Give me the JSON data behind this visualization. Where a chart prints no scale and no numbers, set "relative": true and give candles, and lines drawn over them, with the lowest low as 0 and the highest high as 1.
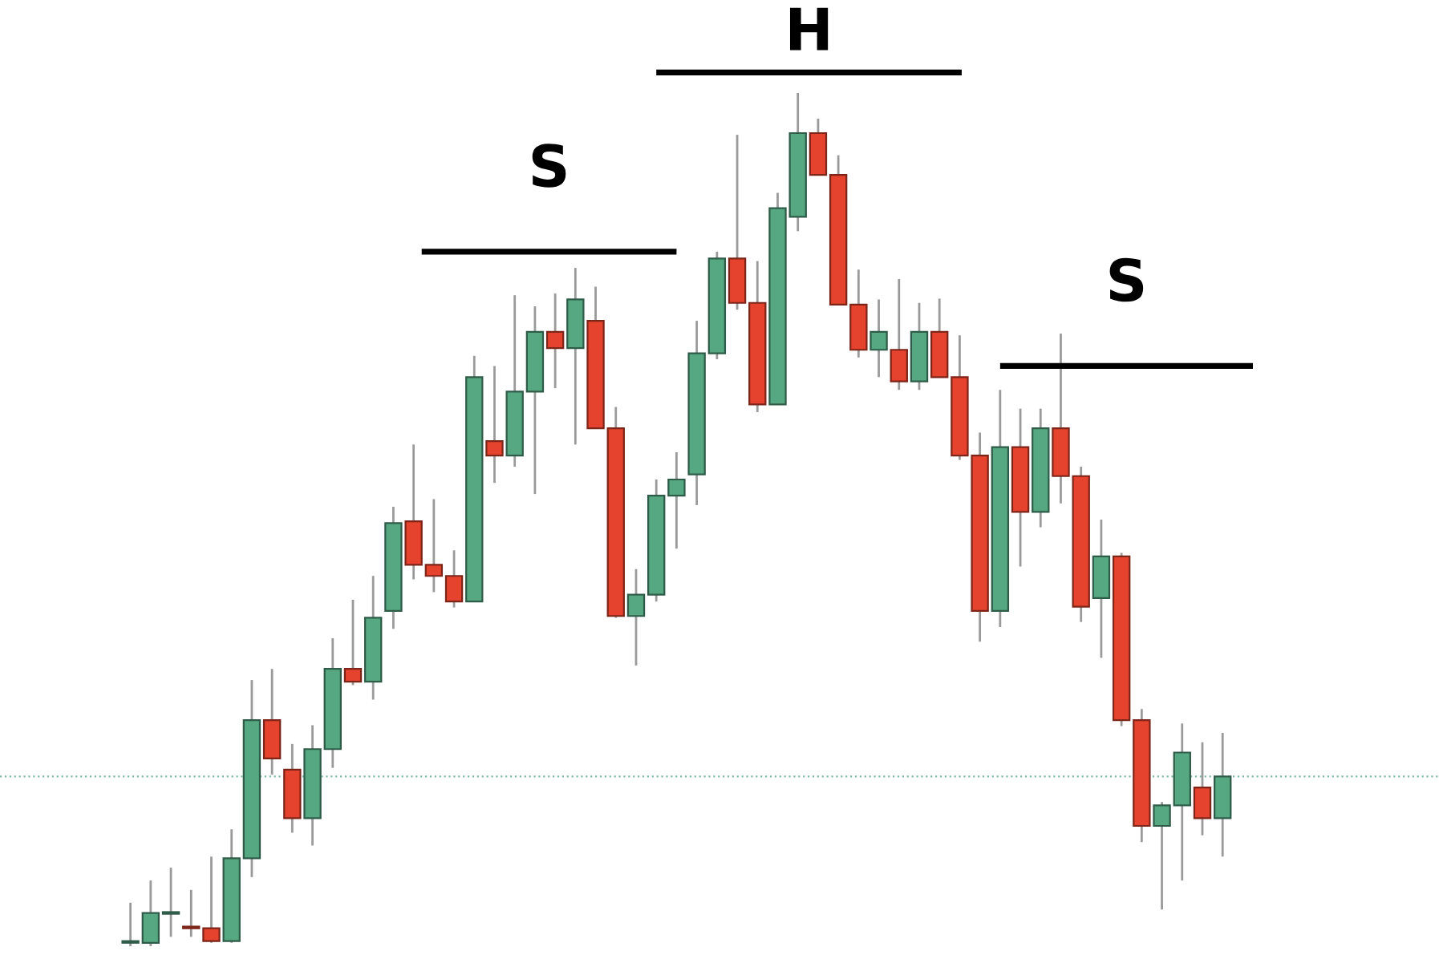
{
  "chart_data": {
    "type": "candlestick",
    "relative": true,
    "grid": false,
    "categories": [
      null,
      null,
      null,
      null,
      null,
      null,
      null,
      null,
      null,
      null,
      null,
      null,
      null,
      null,
      null,
      null,
      null,
      null,
      null,
      null,
      null,
      null,
      null,
      null,
      null,
      null,
      null,
      null,
      null,
      null,
      null,
      null,
      null,
      null,
      null,
      null,
      null,
      null,
      null,
      null,
      null,
      null,
      null,
      null,
      null,
      null,
      null,
      null,
      null,
      null,
      null,
      null,
      null,
      null,
      null
    ],
    "colors": [
      "#55a882",
      "#55a882",
      "#55a882",
      "#e5432d",
      "#e5432d",
      "#55a882",
      "#55a882",
      "#e5432d",
      "#e5432d",
      "#55a882",
      "#55a882",
      "#e5432d",
      "#55a882",
      "#55a882",
      "#e5432d",
      "#e5432d",
      "#e5432d",
      "#55a882",
      "#e5432d",
      "#55a882",
      "#55a882",
      "#e5432d",
      "#55a882",
      "#e5432d",
      "#e5432d",
      "#55a882",
      "#55a882",
      "#55a882",
      "#55a882",
      "#55a882",
      "#e5432d",
      "#e5432d",
      "#55a882",
      "#55a882",
      "#e5432d",
      "#e5432d",
      "#e5432d",
      "#55a882",
      "#e5432d",
      "#55a882",
      "#e5432d",
      "#e5432d",
      "#e5432d",
      "#55a882",
      "#e5432d",
      "#55a882",
      "#e5432d",
      "#e5432d",
      "#55a882",
      "#e5432d",
      "#e5432d",
      "#55a882",
      "#55a882",
      "#e5432d",
      "#55a882"
    ],
    "ohlc": [
      [
        0.004,
        0.051,
        0,
        0.004
      ],
      [
        0.004,
        0.077,
        0,
        0.039
      ],
      [
        0.038,
        0.092,
        0.011,
        0.039
      ],
      [
        0.023,
        0.066,
        0.011,
        0.021
      ],
      [
        0.021,
        0.105,
        0.004,
        0.006
      ],
      [
        0.006,
        0.137,
        0.004,
        0.103
      ],
      [
        0.103,
        0.312,
        0.081,
        0.265
      ],
      [
        0.265,
        0.325,
        0.201,
        0.22
      ],
      [
        0.207,
        0.237,
        0.133,
        0.15
      ],
      [
        0.15,
        0.259,
        0.118,
        0.231
      ],
      [
        0.231,
        0.361,
        0.209,
        0.325
      ],
      [
        0.325,
        0.406,
        0.306,
        0.31
      ],
      [
        0.31,
        0.434,
        0.289,
        0.385
      ],
      [
        0.393,
        0.515,
        0.372,
        0.496
      ],
      [
        0.498,
        0.588,
        0.43,
        0.447
      ],
      [
        0.447,
        0.524,
        0.415,
        0.434
      ],
      [
        0.434,
        0.464,
        0.397,
        0.404
      ],
      [
        0.404,
        0.692,
        0.404,
        0.667
      ],
      [
        0.592,
        0.68,
        0.543,
        0.575
      ],
      [
        0.575,
        0.763,
        0.562,
        0.65
      ],
      [
        0.65,
        0.75,
        0.53,
        0.72
      ],
      [
        0.72,
        0.765,
        0.654,
        0.701
      ],
      [
        0.701,
        0.795,
        0.588,
        0.758
      ],
      [
        0.733,
        0.773,
        0.607,
        0.607
      ],
      [
        0.607,
        0.632,
        0.385,
        0.387
      ],
      [
        0.387,
        0.442,
        0.329,
        0.412
      ],
      [
        0.412,
        0.547,
        0.404,
        0.528
      ],
      [
        0.528,
        0.579,
        0.466,
        0.547
      ],
      [
        0.553,
        0.733,
        0.517,
        0.695
      ],
      [
        0.695,
        0.814,
        0.688,
        0.806
      ],
      [
        0.806,
        0.951,
        0.746,
        0.754
      ],
      [
        0.754,
        0.803,
        0.626,
        0.635
      ],
      [
        0.635,
        0.883,
        0.635,
        0.865
      ],
      [
        0.855,
        1.0,
        0.838,
        0.953
      ],
      [
        0.953,
        0.97,
        0.904,
        0.904
      ],
      [
        0.904,
        0.927,
        0.752,
        0.752
      ],
      [
        0.752,
        0.793,
        0.69,
        0.699
      ],
      [
        0.699,
        0.758,
        0.667,
        0.72
      ],
      [
        0.699,
        0.782,
        0.652,
        0.662
      ],
      [
        0.662,
        0.754,
        0.652,
        0.72
      ],
      [
        0.72,
        0.759,
        0.667,
        0.667
      ],
      [
        0.667,
        0.716,
        0.57,
        0.575
      ],
      [
        0.575,
        0.602,
        0.357,
        0.393
      ],
      [
        0.393,
        0.652,
        0.374,
        0.585
      ],
      [
        0.585,
        0.63,
        0.445,
        0.509
      ],
      [
        0.509,
        0.63,
        0.491,
        0.607
      ],
      [
        0.607,
        0.718,
        0.519,
        0.551
      ],
      [
        0.551,
        0.562,
        0.38,
        0.398
      ],
      [
        0.408,
        0.5,
        0.338,
        0.457
      ],
      [
        0.457,
        0.461,
        0.258,
        0.265
      ],
      [
        0.265,
        0.278,
        0.122,
        0.141
      ],
      [
        0.141,
        0.169,
        0.043,
        0.165
      ],
      [
        0.165,
        0.261,
        0.077,
        0.227
      ],
      [
        0.186,
        0.239,
        0.13,
        0.15
      ],
      [
        0.15,
        0.25,
        0.105,
        0.199
      ]
    ],
    "ref_lines": [
      {
        "axis": "y",
        "value": 0.199,
        "color": "#7fb8a4",
        "line_style": "dotted"
      },
      {
        "axis": "y",
        "value": 0.814,
        "label": "S",
        "color": "#000000"
      },
      {
        "axis": "y",
        "value": 1.024,
        "label": "H",
        "color": "#000000"
      },
      {
        "axis": "y",
        "value": 0.68,
        "label": "S",
        "color": "#000000"
      }
    ]
  }
}
